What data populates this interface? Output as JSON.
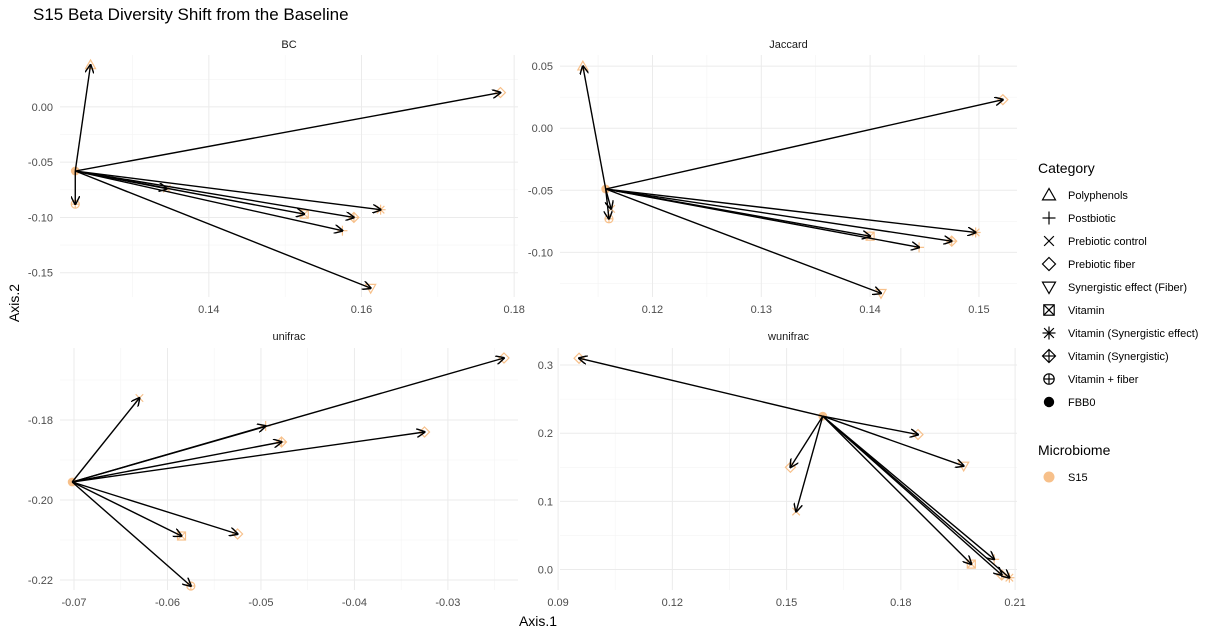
{
  "title": "S15 Beta Diversity Shift from the Baseline",
  "xlabel": "Axis.1",
  "ylabel": "Axis.2",
  "legend": {
    "category_title": "Category",
    "categories": [
      {
        "label": "Polyphenols",
        "shape": "triangle-up"
      },
      {
        "label": "Postbiotic",
        "shape": "plus"
      },
      {
        "label": "Prebiotic control",
        "shape": "cross"
      },
      {
        "label": "Prebiotic fiber",
        "shape": "diamond"
      },
      {
        "label": "Synergistic effect (Fiber)",
        "shape": "triangle-down"
      },
      {
        "label": "Vitamin",
        "shape": "square-cross"
      },
      {
        "label": "Vitamin (Synergistic effect)",
        "shape": "asterisk"
      },
      {
        "label": "Vitamin (Synergistic)",
        "shape": "diamond-plus"
      },
      {
        "label": "Vitamin + fiber",
        "shape": "circle-plus"
      },
      {
        "label": "FBB0",
        "shape": "filled-circle"
      }
    ],
    "microbiome_title": "Microbiome",
    "microbiome": [
      {
        "label": "S15",
        "color": "#f7c08a"
      }
    ]
  },
  "colors": {
    "point": "#f7c08a",
    "arrow": "#000000",
    "baseline": "#f7c08a"
  },
  "chart_data": [
    {
      "type": "scatter",
      "panel": "BC",
      "xlim": [
        0.1205,
        0.1805
      ],
      "ylim": [
        -0.172,
        0.047
      ],
      "xticks": [
        0.14,
        0.16,
        0.18
      ],
      "xtick_labels": [
        "0.14",
        "0.16",
        "0.18"
      ],
      "yticks": [
        -0.15,
        -0.1,
        -0.05,
        0.0
      ],
      "ytick_labels": [
        "-0.15",
        "-0.10",
        "-0.05",
        "0.00"
      ],
      "baseline": {
        "x": 0.1225,
        "y": -0.058
      },
      "points": [
        {
          "x": 0.1245,
          "y": 0.038,
          "shape": "triangle-up"
        },
        {
          "x": 0.1782,
          "y": 0.013,
          "shape": "diamond"
        },
        {
          "x": 0.1225,
          "y": -0.088,
          "shape": "circle-plus"
        },
        {
          "x": 0.1345,
          "y": -0.074,
          "shape": "cross"
        },
        {
          "x": 0.1525,
          "y": -0.097,
          "shape": "square-cross"
        },
        {
          "x": 0.159,
          "y": -0.1,
          "shape": "diamond-plus"
        },
        {
          "x": 0.1625,
          "y": -0.093,
          "shape": "asterisk"
        },
        {
          "x": 0.1575,
          "y": -0.112,
          "shape": "plus"
        },
        {
          "x": 0.1612,
          "y": -0.164,
          "shape": "triangle-down"
        }
      ]
    },
    {
      "type": "scatter",
      "panel": "Jaccard",
      "xlim": [
        0.1115,
        0.1535
      ],
      "ylim": [
        -0.136,
        0.059
      ],
      "xticks": [
        0.12,
        0.13,
        0.14,
        0.15
      ],
      "xtick_labels": [
        "0.12",
        "0.13",
        "0.14",
        "0.15"
      ],
      "yticks": [
        -0.1,
        -0.05,
        0.0,
        0.05
      ],
      "ytick_labels": [
        "-0.10",
        "-0.05",
        "0.00",
        "0.05"
      ],
      "baseline": {
        "x": 0.1157,
        "y": -0.049
      },
      "points": [
        {
          "x": 0.1136,
          "y": 0.05,
          "shape": "triangle-up"
        },
        {
          "x": 0.1522,
          "y": 0.023,
          "shape": "diamond"
        },
        {
          "x": 0.1162,
          "y": -0.065,
          "shape": "cross"
        },
        {
          "x": 0.116,
          "y": -0.073,
          "shape": "circle-plus"
        },
        {
          "x": 0.14,
          "y": -0.087,
          "shape": "square-cross"
        },
        {
          "x": 0.1445,
          "y": -0.096,
          "shape": "plus"
        },
        {
          "x": 0.1475,
          "y": -0.091,
          "shape": "diamond-plus"
        },
        {
          "x": 0.1497,
          "y": -0.084,
          "shape": "asterisk"
        },
        {
          "x": 0.141,
          "y": -0.133,
          "shape": "triangle-down"
        }
      ]
    },
    {
      "type": "scatter",
      "panel": "unifrac",
      "xlim": [
        -0.0715,
        -0.0225
      ],
      "ylim": [
        -0.2225,
        -0.162
      ],
      "xticks": [
        -0.07,
        -0.06,
        -0.05,
        -0.04,
        -0.03
      ],
      "xtick_labels": [
        "-0.07",
        "-0.06",
        "-0.05",
        "-0.04",
        "-0.03"
      ],
      "yticks": [
        -0.22,
        -0.2,
        -0.18
      ],
      "ytick_labels": [
        "-0.22",
        "-0.20",
        "-0.18"
      ],
      "baseline": {
        "x": -0.0702,
        "y": -0.1955
      },
      "points": [
        {
          "x": -0.063,
          "y": -0.1745,
          "shape": "cross"
        },
        {
          "x": -0.024,
          "y": -0.1645,
          "shape": "diamond"
        },
        {
          "x": -0.0495,
          "y": -0.1815,
          "shape": "plus"
        },
        {
          "x": -0.0478,
          "y": -0.1855,
          "shape": "diamond-plus"
        },
        {
          "x": -0.0325,
          "y": -0.183,
          "shape": "diamond"
        },
        {
          "x": -0.0585,
          "y": -0.209,
          "shape": "square-cross"
        },
        {
          "x": -0.0525,
          "y": -0.2085,
          "shape": "diamond"
        },
        {
          "x": -0.0575,
          "y": -0.2215,
          "shape": "circle-plus"
        }
      ]
    },
    {
      "type": "scatter",
      "panel": "wunifrac",
      "xlim": [
        0.0905,
        0.2105
      ],
      "ylim": [
        -0.03,
        0.325
      ],
      "xticks": [
        0.09,
        0.12,
        0.15,
        0.18,
        0.21
      ],
      "xtick_labels": [
        "0.09",
        "0.12",
        "0.15",
        "0.18",
        "0.21"
      ],
      "yticks": [
        0.0,
        0.1,
        0.2,
        0.3
      ],
      "ytick_labels": [
        "0.0",
        "0.1",
        "0.2",
        "0.3"
      ],
      "baseline": {
        "x": 0.1595,
        "y": 0.225
      },
      "points": [
        {
          "x": 0.0955,
          "y": 0.31,
          "shape": "diamond"
        },
        {
          "x": 0.1845,
          "y": 0.198,
          "shape": "diamond"
        },
        {
          "x": 0.1965,
          "y": 0.152,
          "shape": "triangle-down"
        },
        {
          "x": 0.151,
          "y": 0.15,
          "shape": "diamond"
        },
        {
          "x": 0.1525,
          "y": 0.085,
          "shape": "cross"
        },
        {
          "x": 0.1985,
          "y": 0.008,
          "shape": "square-cross"
        },
        {
          "x": 0.2045,
          "y": 0.015,
          "shape": "plus"
        },
        {
          "x": 0.2065,
          "y": -0.008,
          "shape": "diamond-plus"
        },
        {
          "x": 0.2085,
          "y": -0.012,
          "shape": "asterisk"
        }
      ]
    }
  ]
}
